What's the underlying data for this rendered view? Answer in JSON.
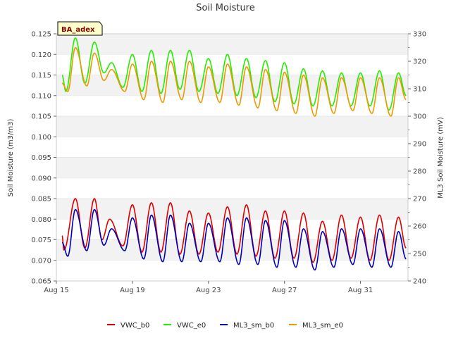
{
  "chart_data": {
    "type": "line",
    "title": "Soil Moisture",
    "site_label": "BA_adex",
    "ylabel": "Soil Moisture (m3/m3)",
    "y2label": "ML3 Soil Moisture (mV)",
    "ylim": [
      0.065,
      0.125
    ],
    "y2lim": [
      240,
      330
    ],
    "xlim": [
      0,
      18.5
    ],
    "x_ticks": [
      {
        "day": 0,
        "label": "Aug 15"
      },
      {
        "day": 4,
        "label": "Aug 19"
      },
      {
        "day": 8,
        "label": "Aug 23"
      },
      {
        "day": 12,
        "label": "Aug 27"
      },
      {
        "day": 16,
        "label": "Aug 31"
      }
    ],
    "y_ticks": [
      "0.065",
      "0.070",
      "0.075",
      "0.080",
      "0.085",
      "0.090",
      "0.095",
      "0.100",
      "0.105",
      "0.110",
      "0.115",
      "0.120",
      "0.125"
    ],
    "y2_ticks": [
      "240",
      "250",
      "260",
      "270",
      "280",
      "290",
      "300",
      "310",
      "320",
      "330"
    ],
    "grid_bands": true,
    "legend_position": "bottom-center",
    "series": [
      {
        "name": "VWC_b0",
        "axis": "left",
        "color": "#dd0000",
        "peaks": [
          {
            "day": 1.0,
            "y": 0.085
          },
          {
            "day": 2.0,
            "y": 0.085
          },
          {
            "day": 2.8,
            "y": 0.08
          },
          {
            "day": 4.0,
            "y": 0.0835
          },
          {
            "day": 5.0,
            "y": 0.084
          },
          {
            "day": 6.0,
            "y": 0.084
          },
          {
            "day": 7.0,
            "y": 0.082
          },
          {
            "day": 8.0,
            "y": 0.0815
          },
          {
            "day": 9.0,
            "y": 0.083
          },
          {
            "day": 10.0,
            "y": 0.0835
          },
          {
            "day": 11.0,
            "y": 0.082
          },
          {
            "day": 12.0,
            "y": 0.082
          },
          {
            "day": 13.0,
            "y": 0.0815
          },
          {
            "day": 14.0,
            "y": 0.0795
          },
          {
            "day": 15.0,
            "y": 0.081
          },
          {
            "day": 16.0,
            "y": 0.0805
          },
          {
            "day": 17.0,
            "y": 0.081
          },
          {
            "day": 18.0,
            "y": 0.0805
          }
        ],
        "troughs": [
          {
            "day": 0.4,
            "y": 0.0725
          },
          {
            "day": 1.5,
            "y": 0.073
          },
          {
            "day": 2.4,
            "y": 0.075
          },
          {
            "day": 3.5,
            "y": 0.0735
          },
          {
            "day": 4.5,
            "y": 0.072
          },
          {
            "day": 5.5,
            "y": 0.072
          },
          {
            "day": 6.5,
            "y": 0.0715
          },
          {
            "day": 7.5,
            "y": 0.0715
          },
          {
            "day": 8.5,
            "y": 0.072
          },
          {
            "day": 9.5,
            "y": 0.0715
          },
          {
            "day": 10.5,
            "y": 0.071
          },
          {
            "day": 11.5,
            "y": 0.0705
          },
          {
            "day": 12.5,
            "y": 0.0705
          },
          {
            "day": 13.5,
            "y": 0.0695
          },
          {
            "day": 14.5,
            "y": 0.07
          },
          {
            "day": 15.5,
            "y": 0.0705
          },
          {
            "day": 16.5,
            "y": 0.07
          },
          {
            "day": 17.5,
            "y": 0.07
          },
          {
            "day": 18.4,
            "y": 0.073
          }
        ],
        "start": {
          "day": 0.3,
          "y": 0.076
        }
      },
      {
        "name": "VWC_e0",
        "axis": "left",
        "color": "#22ee00",
        "peaks": [
          {
            "day": 1.0,
            "y": 0.124
          },
          {
            "day": 2.0,
            "y": 0.123
          },
          {
            "day": 2.9,
            "y": 0.118
          },
          {
            "day": 4.0,
            "y": 0.12
          },
          {
            "day": 5.0,
            "y": 0.121
          },
          {
            "day": 6.0,
            "y": 0.121
          },
          {
            "day": 7.0,
            "y": 0.121
          },
          {
            "day": 8.0,
            "y": 0.119
          },
          {
            "day": 9.0,
            "y": 0.12
          },
          {
            "day": 10.0,
            "y": 0.119
          },
          {
            "day": 11.0,
            "y": 0.1185
          },
          {
            "day": 12.0,
            "y": 0.118
          },
          {
            "day": 13.0,
            "y": 0.1165
          },
          {
            "day": 14.0,
            "y": 0.116
          },
          {
            "day": 15.0,
            "y": 0.1155
          },
          {
            "day": 16.0,
            "y": 0.1155
          },
          {
            "day": 17.0,
            "y": 0.116
          },
          {
            "day": 18.0,
            "y": 0.1155
          }
        ],
        "troughs": [
          {
            "day": 0.5,
            "y": 0.111
          },
          {
            "day": 1.5,
            "y": 0.113
          },
          {
            "day": 2.5,
            "y": 0.1155
          },
          {
            "day": 3.5,
            "y": 0.112
          },
          {
            "day": 4.5,
            "y": 0.111
          },
          {
            "day": 5.5,
            "y": 0.1105
          },
          {
            "day": 6.5,
            "y": 0.1115
          },
          {
            "day": 7.5,
            "y": 0.111
          },
          {
            "day": 8.5,
            "y": 0.1105
          },
          {
            "day": 9.5,
            "y": 0.11
          },
          {
            "day": 10.5,
            "y": 0.1095
          },
          {
            "day": 11.5,
            "y": 0.1085
          },
          {
            "day": 12.5,
            "y": 0.108
          },
          {
            "day": 13.5,
            "y": 0.1075
          },
          {
            "day": 14.5,
            "y": 0.1075
          },
          {
            "day": 15.5,
            "y": 0.1075
          },
          {
            "day": 16.5,
            "y": 0.1075
          },
          {
            "day": 17.5,
            "y": 0.1065
          },
          {
            "day": 18.4,
            "y": 0.11
          }
        ],
        "start": {
          "day": 0.3,
          "y": 0.115
        }
      },
      {
        "name": "ML3_sm_b0",
        "axis": "right",
        "color": "#0000bb",
        "peaks": [
          {
            "day": 1.0,
            "y": 266
          },
          {
            "day": 2.0,
            "y": 266
          },
          {
            "day": 2.9,
            "y": 259
          },
          {
            "day": 4.0,
            "y": 263
          },
          {
            "day": 5.0,
            "y": 264
          },
          {
            "day": 6.0,
            "y": 264
          },
          {
            "day": 7.0,
            "y": 261
          },
          {
            "day": 8.0,
            "y": 261
          },
          {
            "day": 9.0,
            "y": 263
          },
          {
            "day": 10.0,
            "y": 263
          },
          {
            "day": 11.0,
            "y": 262
          },
          {
            "day": 12.0,
            "y": 262
          },
          {
            "day": 13.0,
            "y": 259
          },
          {
            "day": 14.0,
            "y": 258
          },
          {
            "day": 15.0,
            "y": 259
          },
          {
            "day": 16.0,
            "y": 259
          },
          {
            "day": 17.0,
            "y": 259
          },
          {
            "day": 18.0,
            "y": 258
          }
        ],
        "troughs": [
          {
            "day": 0.6,
            "y": 249
          },
          {
            "day": 1.6,
            "y": 251
          },
          {
            "day": 2.5,
            "y": 253
          },
          {
            "day": 3.6,
            "y": 251
          },
          {
            "day": 4.6,
            "y": 248
          },
          {
            "day": 5.6,
            "y": 247
          },
          {
            "day": 6.6,
            "y": 247
          },
          {
            "day": 7.6,
            "y": 247
          },
          {
            "day": 8.6,
            "y": 247
          },
          {
            "day": 9.6,
            "y": 246
          },
          {
            "day": 10.6,
            "y": 246
          },
          {
            "day": 11.6,
            "y": 245
          },
          {
            "day": 12.6,
            "y": 245
          },
          {
            "day": 13.6,
            "y": 244
          },
          {
            "day": 14.6,
            "y": 245
          },
          {
            "day": 15.6,
            "y": 246
          },
          {
            "day": 16.6,
            "y": 245
          },
          {
            "day": 17.6,
            "y": 245
          },
          {
            "day": 18.4,
            "y": 248
          }
        ],
        "start": {
          "day": 0.3,
          "y": 254
        }
      },
      {
        "name": "ML3_sm_e0",
        "axis": "right",
        "color": "#ee9900",
        "peaks": [
          {
            "day": 1.0,
            "y": 325
          },
          {
            "day": 2.0,
            "y": 323
          },
          {
            "day": 2.9,
            "y": 317
          },
          {
            "day": 4.0,
            "y": 319
          },
          {
            "day": 5.0,
            "y": 320
          },
          {
            "day": 6.0,
            "y": 320
          },
          {
            "day": 7.0,
            "y": 320
          },
          {
            "day": 8.0,
            "y": 318
          },
          {
            "day": 9.0,
            "y": 319
          },
          {
            "day": 10.0,
            "y": 318
          },
          {
            "day": 11.0,
            "y": 317
          },
          {
            "day": 12.0,
            "y": 316
          },
          {
            "day": 13.0,
            "y": 315
          },
          {
            "day": 14.0,
            "y": 314
          },
          {
            "day": 15.0,
            "y": 314
          },
          {
            "day": 16.0,
            "y": 314
          },
          {
            "day": 17.0,
            "y": 314
          },
          {
            "day": 18.0,
            "y": 314
          }
        ],
        "troughs": [
          {
            "day": 0.6,
            "y": 309
          },
          {
            "day": 1.6,
            "y": 311
          },
          {
            "day": 2.5,
            "y": 313
          },
          {
            "day": 3.6,
            "y": 309
          },
          {
            "day": 4.6,
            "y": 306
          },
          {
            "day": 5.6,
            "y": 305
          },
          {
            "day": 6.6,
            "y": 306
          },
          {
            "day": 7.6,
            "y": 305
          },
          {
            "day": 8.6,
            "y": 305
          },
          {
            "day": 9.6,
            "y": 304
          },
          {
            "day": 10.6,
            "y": 303
          },
          {
            "day": 11.6,
            "y": 302
          },
          {
            "day": 12.6,
            "y": 301
          },
          {
            "day": 13.6,
            "y": 300
          },
          {
            "day": 14.6,
            "y": 301
          },
          {
            "day": 15.6,
            "y": 302
          },
          {
            "day": 16.6,
            "y": 301
          },
          {
            "day": 17.6,
            "y": 300
          },
          {
            "day": 18.4,
            "y": 306
          }
        ],
        "start": {
          "day": 0.3,
          "y": 312
        }
      }
    ]
  }
}
